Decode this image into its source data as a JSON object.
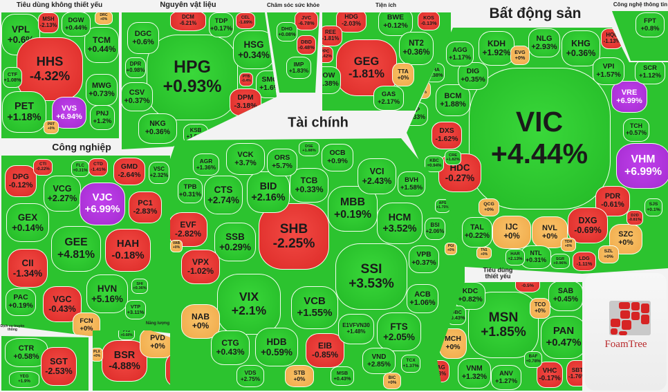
{
  "colors": {
    "up": "#2cc32f",
    "down": "#e3322e",
    "flat": "#f4b452",
    "ceiling": "#b236de"
  },
  "logo": "FoamTree",
  "sectors": [
    {
      "id": "tdktx",
      "title": "Tiêu dùng không thiết yếu",
      "cells": [
        {
          "t": "VPL",
          "c": "+0.6%",
          "s": "up"
        },
        {
          "t": "HHS",
          "c": "-4.32%",
          "s": "down"
        },
        {
          "t": "PET",
          "c": "+1.18%",
          "s": "up"
        },
        {
          "t": "VVS",
          "c": "+6.94%",
          "s": "ceiling"
        },
        {
          "t": "MWG",
          "c": "+0.73%",
          "s": "up"
        },
        {
          "t": "TCM",
          "c": "+0.44%",
          "s": "up"
        },
        {
          "t": "DGW",
          "c": "+0.44%",
          "s": "up"
        },
        {
          "t": "MSH",
          "c": "-2.13%",
          "s": "down"
        },
        {
          "t": "DRC",
          "c": "+0%",
          "s": "flat"
        },
        {
          "t": "PNJ",
          "c": "+1.2%",
          "s": "up"
        },
        {
          "t": "CTF",
          "c": "+1.08%",
          "s": "up"
        },
        {
          "t": "PRT",
          "c": "+0%",
          "s": "flat"
        }
      ]
    },
    {
      "id": "nvl",
      "title": "Nguyên vật liệu",
      "cells": [
        {
          "t": "HPG",
          "c": "+0.93%",
          "s": "up"
        },
        {
          "t": "DGC",
          "c": "+0.6%",
          "s": "up"
        },
        {
          "t": "DCM",
          "c": "-6.21%",
          "s": "down"
        },
        {
          "t": "TDP",
          "c": "+0.17%",
          "s": "up"
        },
        {
          "t": "HSG",
          "c": "+0.34%",
          "s": "up"
        },
        {
          "t": "SMC",
          "c": "+1.6%",
          "s": "up"
        },
        {
          "t": "DPM",
          "c": "-3.18%",
          "s": "down"
        },
        {
          "t": "CSV",
          "c": "+0.37%",
          "s": "up"
        },
        {
          "t": "NKG",
          "c": "+0.36%",
          "s": "up"
        },
        {
          "t": "KSB",
          "c": "+1.56%",
          "s": "up"
        },
        {
          "t": "DPR",
          "c": "+0.98%",
          "s": "up"
        },
        {
          "t": "CEL",
          "c": "-1.89%",
          "s": "down"
        },
        {
          "t": "PTB",
          "c": "-0.4%",
          "s": "down"
        }
      ]
    },
    {
      "id": "cssk",
      "title": "Chăm sóc sức khỏe",
      "cells": [
        {
          "t": "JVC",
          "c": "-6.78%",
          "s": "down"
        },
        {
          "t": "DBD",
          "c": "-0.48%",
          "s": "down"
        },
        {
          "t": "IMP",
          "c": "+1.83%",
          "s": "up"
        },
        {
          "t": "DHG",
          "c": "+0.08%",
          "s": "up"
        }
      ]
    },
    {
      "id": "ti",
      "title": "Tiện ích",
      "cells": [
        {
          "t": "GEG",
          "c": "-1.81%",
          "s": "down"
        },
        {
          "t": "HDG",
          "c": "-2.03%",
          "s": "down"
        },
        {
          "t": "BWE",
          "c": "+0.12%",
          "s": "up"
        },
        {
          "t": "NT2",
          "c": "+0.36%",
          "s": "up"
        },
        {
          "t": "POW",
          "c": "+0.38%",
          "s": "up"
        },
        {
          "t": "TTA",
          "c": "+0%",
          "s": "flat"
        },
        {
          "t": "GAS",
          "c": "+2.17%",
          "s": "up"
        },
        {
          "t": "KOS",
          "c": "-0.13%",
          "s": "down"
        },
        {
          "t": "REE",
          "c": "-1.81%",
          "s": "down"
        },
        {
          "t": "PPC",
          "c": "-1.42%",
          "s": "down"
        }
      ]
    },
    {
      "id": "bds",
      "title": "Bất động sản",
      "cells": [
        {
          "t": "VIC",
          "c": "+4.44%",
          "s": "up"
        },
        {
          "t": "VHM",
          "c": "+6.99%",
          "s": "ceiling"
        },
        {
          "t": "VRE",
          "c": "+6.99%",
          "s": "ceiling"
        },
        {
          "t": "KDH",
          "c": "+1.92%",
          "s": "up"
        },
        {
          "t": "NLG",
          "c": "+2.93%",
          "s": "up"
        },
        {
          "t": "KHG",
          "c": "+0.36%",
          "s": "up"
        },
        {
          "t": "EVG",
          "c": "+0%",
          "s": "flat"
        },
        {
          "t": "VPI",
          "c": "+1.57%",
          "s": "up"
        },
        {
          "t": "HQC",
          "c": "-1.13%",
          "s": "down"
        },
        {
          "t": "SCR",
          "c": "+1.12%",
          "s": "up"
        },
        {
          "t": "TCH",
          "c": "+0.57%",
          "s": "up"
        },
        {
          "t": "BCM",
          "c": "+1.88%",
          "s": "up"
        },
        {
          "t": "DIG",
          "c": "+0.35%",
          "s": "up"
        },
        {
          "t": "AGG",
          "c": "+1.17%",
          "s": "up"
        },
        {
          "t": "DXS",
          "c": "-1.62%",
          "s": "down"
        },
        {
          "t": "SIP",
          "c": "+0.33%",
          "s": "up"
        },
        {
          "t": "NTC",
          "c": "+0%",
          "s": "flat"
        },
        {
          "t": "NHA",
          "c": "+0.38%",
          "s": "up"
        },
        {
          "t": "HDC",
          "c": "-0.27%",
          "s": "down"
        },
        {
          "t": "PDR",
          "c": "-0.61%",
          "s": "down"
        },
        {
          "t": "DXG",
          "c": "-0.69%",
          "s": "down"
        },
        {
          "t": "SZC",
          "c": "+0%",
          "s": "flat"
        },
        {
          "t": "IJC",
          "c": "+0%",
          "s": "flat"
        },
        {
          "t": "NVL",
          "c": "+0%",
          "s": "flat"
        },
        {
          "t": "TAL",
          "c": "+0.22%",
          "s": "up"
        },
        {
          "t": "QCG",
          "c": "+0%",
          "s": "flat"
        },
        {
          "t": "NTL",
          "c": "+0.31%",
          "s": "up"
        },
        {
          "t": "LDG",
          "c": "-1.11%",
          "s": "down"
        },
        {
          "t": "SZL",
          "c": "+0%",
          "s": "flat"
        },
        {
          "t": "SJS",
          "c": "+0.1%",
          "s": "up"
        },
        {
          "t": "LGL",
          "c": "+0%",
          "s": "flat"
        },
        {
          "t": "D2D",
          "c": "-0.81%",
          "s": "down"
        },
        {
          "t": "KBC",
          "c": "+0.94%",
          "s": "up"
        },
        {
          "t": "CRE",
          "c": "+1.82%",
          "s": "up"
        },
        {
          "t": "HAR",
          "c": "+2.13%",
          "s": "up"
        },
        {
          "t": "SGR",
          "c": "+0.96%",
          "s": "up"
        },
        {
          "t": "TDH",
          "c": "+0%",
          "s": "flat"
        },
        {
          "t": "TN1",
          "c": "+0%",
          "s": "flat"
        }
      ]
    },
    {
      "id": "cntt",
      "title": "Công nghệ thông tin",
      "cells": [
        {
          "t": "FPT",
          "c": "+0.8%",
          "s": "up"
        }
      ]
    },
    {
      "id": "cn",
      "title": "Công nghiệp",
      "cells": [
        {
          "t": "DPG",
          "c": "-0.12%",
          "s": "down"
        },
        {
          "t": "VCG",
          "c": "+2.27%",
          "s": "up"
        },
        {
          "t": "VJC",
          "c": "+6.99%",
          "s": "ceiling"
        },
        {
          "t": "GMD",
          "c": "-2.64%",
          "s": "down"
        },
        {
          "t": "PC1",
          "c": "-2.83%",
          "s": "down"
        },
        {
          "t": "VSC",
          "c": "+2.32%",
          "s": "up"
        },
        {
          "t": "GEX",
          "c": "+0.14%",
          "s": "up"
        },
        {
          "t": "GEE",
          "c": "+4.81%",
          "s": "up"
        },
        {
          "t": "HAH",
          "c": "-0.18%",
          "s": "down"
        },
        {
          "t": "CII",
          "c": "-1.34%",
          "s": "down"
        },
        {
          "t": "VGC",
          "c": "-0.43%",
          "s": "down"
        },
        {
          "t": "HVN",
          "c": "+5.16%",
          "s": "up"
        },
        {
          "t": "PAC",
          "c": "+0.19%",
          "s": "up"
        },
        {
          "t": "FCN",
          "c": "+0%",
          "s": "flat"
        },
        {
          "t": "CTI",
          "c": "-0.22%",
          "s": "down"
        },
        {
          "t": "CTD",
          "c": "-1.41%",
          "s": "down"
        },
        {
          "t": "VTP",
          "c": "+3.11%",
          "s": "up"
        },
        {
          "t": "FLC",
          "c": "+0.31%",
          "s": "up"
        },
        {
          "t": "SHI",
          "c": "+0.36%",
          "s": "up"
        }
      ]
    },
    {
      "id": "tc",
      "title": "Tài chính",
      "cells": [
        {
          "t": "SHB",
          "c": "-2.25%",
          "s": "down"
        },
        {
          "t": "SSI",
          "c": "+3.53%",
          "s": "up"
        },
        {
          "t": "VIX",
          "c": "+2.1%",
          "s": "up"
        },
        {
          "t": "VCB",
          "c": "+1.55%",
          "s": "up"
        },
        {
          "t": "MBB",
          "c": "+0.19%",
          "s": "up"
        },
        {
          "t": "HCM",
          "c": "+3.52%",
          "s": "up"
        },
        {
          "t": "VCI",
          "c": "+2.43%",
          "s": "up"
        },
        {
          "t": "BID",
          "c": "+2.16%",
          "s": "up"
        },
        {
          "t": "CTS",
          "c": "+2.74%",
          "s": "up"
        },
        {
          "t": "TCB",
          "c": "+0.33%",
          "s": "up"
        },
        {
          "t": "VCK",
          "c": "+3.7%",
          "s": "up"
        },
        {
          "t": "ORS",
          "c": "+5.7%",
          "s": "up"
        },
        {
          "t": "OCB",
          "c": "+0.9%",
          "s": "up"
        },
        {
          "t": "EVF",
          "c": "-2.82%",
          "s": "down"
        },
        {
          "t": "SSB",
          "c": "+0.29%",
          "s": "up"
        },
        {
          "t": "VPX",
          "c": "-1.02%",
          "s": "down"
        },
        {
          "t": "NAB",
          "c": "+0%",
          "s": "flat"
        },
        {
          "t": "CTG",
          "c": "+0.43%",
          "s": "up"
        },
        {
          "t": "HDB",
          "c": "+0.59%",
          "s": "up"
        },
        {
          "t": "EIB",
          "c": "-0.85%",
          "s": "down"
        },
        {
          "t": "STB",
          "c": "+0%",
          "s": "flat"
        },
        {
          "t": "VDS",
          "c": "+2.75%",
          "s": "up"
        },
        {
          "t": "E1VFVN30",
          "c": "+1.48%",
          "s": "up"
        },
        {
          "t": "FTS",
          "c": "+2.05%",
          "s": "up"
        },
        {
          "t": "VND",
          "c": "+2.85%",
          "s": "up"
        },
        {
          "t": "ACB",
          "c": "+1.06%",
          "s": "up"
        },
        {
          "t": "VPB",
          "c": "+0.37%",
          "s": "up"
        },
        {
          "t": "BSI",
          "c": "+2.06%",
          "s": "up"
        },
        {
          "t": "BVH",
          "c": "+1.58%",
          "s": "up"
        },
        {
          "t": "TPB",
          "c": "+0.31%",
          "s": "up"
        },
        {
          "t": "AGR",
          "c": "+1.36%",
          "s": "up"
        },
        {
          "t": "MSB",
          "c": "+0.43%",
          "s": "up"
        },
        {
          "t": "BIC",
          "c": "+0%",
          "s": "flat"
        },
        {
          "t": "TCX",
          "c": "+1.37%",
          "s": "up"
        },
        {
          "t": "DSE",
          "c": "+1.88%",
          "s": "up"
        },
        {
          "t": "VAB",
          "c": "+0%",
          "s": "flat"
        },
        {
          "t": "PGI",
          "c": "+0%",
          "s": "flat"
        },
        {
          "t": "APS",
          "c": "+1.75%",
          "s": "up"
        },
        {
          "t": "MBS",
          "c": "+0%",
          "s": "flat"
        }
      ]
    },
    {
      "id": "dvtt",
      "title": "Dịch vụ truyền thông",
      "cells": [
        {
          "t": "CTR",
          "c": "+0.58%",
          "s": "up"
        },
        {
          "t": "SGT",
          "c": "-2.53%",
          "s": "down"
        },
        {
          "t": "YEG",
          "c": "+1.9%",
          "s": "up"
        }
      ]
    },
    {
      "id": "nl",
      "title": "Năng lượng",
      "cells": [
        {
          "t": "BSR",
          "c": "-4.88%",
          "s": "down"
        },
        {
          "t": "PVD",
          "c": "+0%",
          "s": "flat"
        },
        {
          "t": "PVT",
          "c": "-0.23%",
          "s": "down"
        },
        {
          "t": "PVS",
          "c": "+0.68%",
          "s": "up"
        },
        {
          "t": "PLX",
          "c": "+0%",
          "s": "flat"
        }
      ]
    },
    {
      "id": "tdty",
      "title": "Tiêu dùng thiết yếu",
      "cells": [
        {
          "t": "MSN",
          "c": "+1.85%",
          "s": "up"
        },
        {
          "t": "PAN",
          "c": "+0.47%",
          "s": "up"
        },
        {
          "t": "SAB",
          "c": "+0.45%",
          "s": "up"
        },
        {
          "t": "KDC",
          "c": "+0.82%",
          "s": "up"
        },
        {
          "t": "TCO",
          "c": "+0%",
          "s": "flat"
        },
        {
          "t": "NAF",
          "c": "-0.5%",
          "s": "down"
        },
        {
          "t": "MCH",
          "c": "+0%",
          "s": "flat"
        },
        {
          "t": "HAG",
          "c": "-0.3%",
          "s": "down"
        },
        {
          "t": "VNM",
          "c": "+1.32%",
          "s": "up"
        },
        {
          "t": "ANV",
          "c": "+1.27%",
          "s": "up"
        },
        {
          "t": "VHC",
          "c": "-0.17%",
          "s": "down"
        },
        {
          "t": "SBT",
          "c": "-1.76%",
          "s": "down"
        },
        {
          "t": "DBC",
          "c": "+0.43%",
          "s": "up"
        },
        {
          "t": "BAF",
          "c": "+0.78%",
          "s": "up"
        }
      ]
    }
  ]
}
